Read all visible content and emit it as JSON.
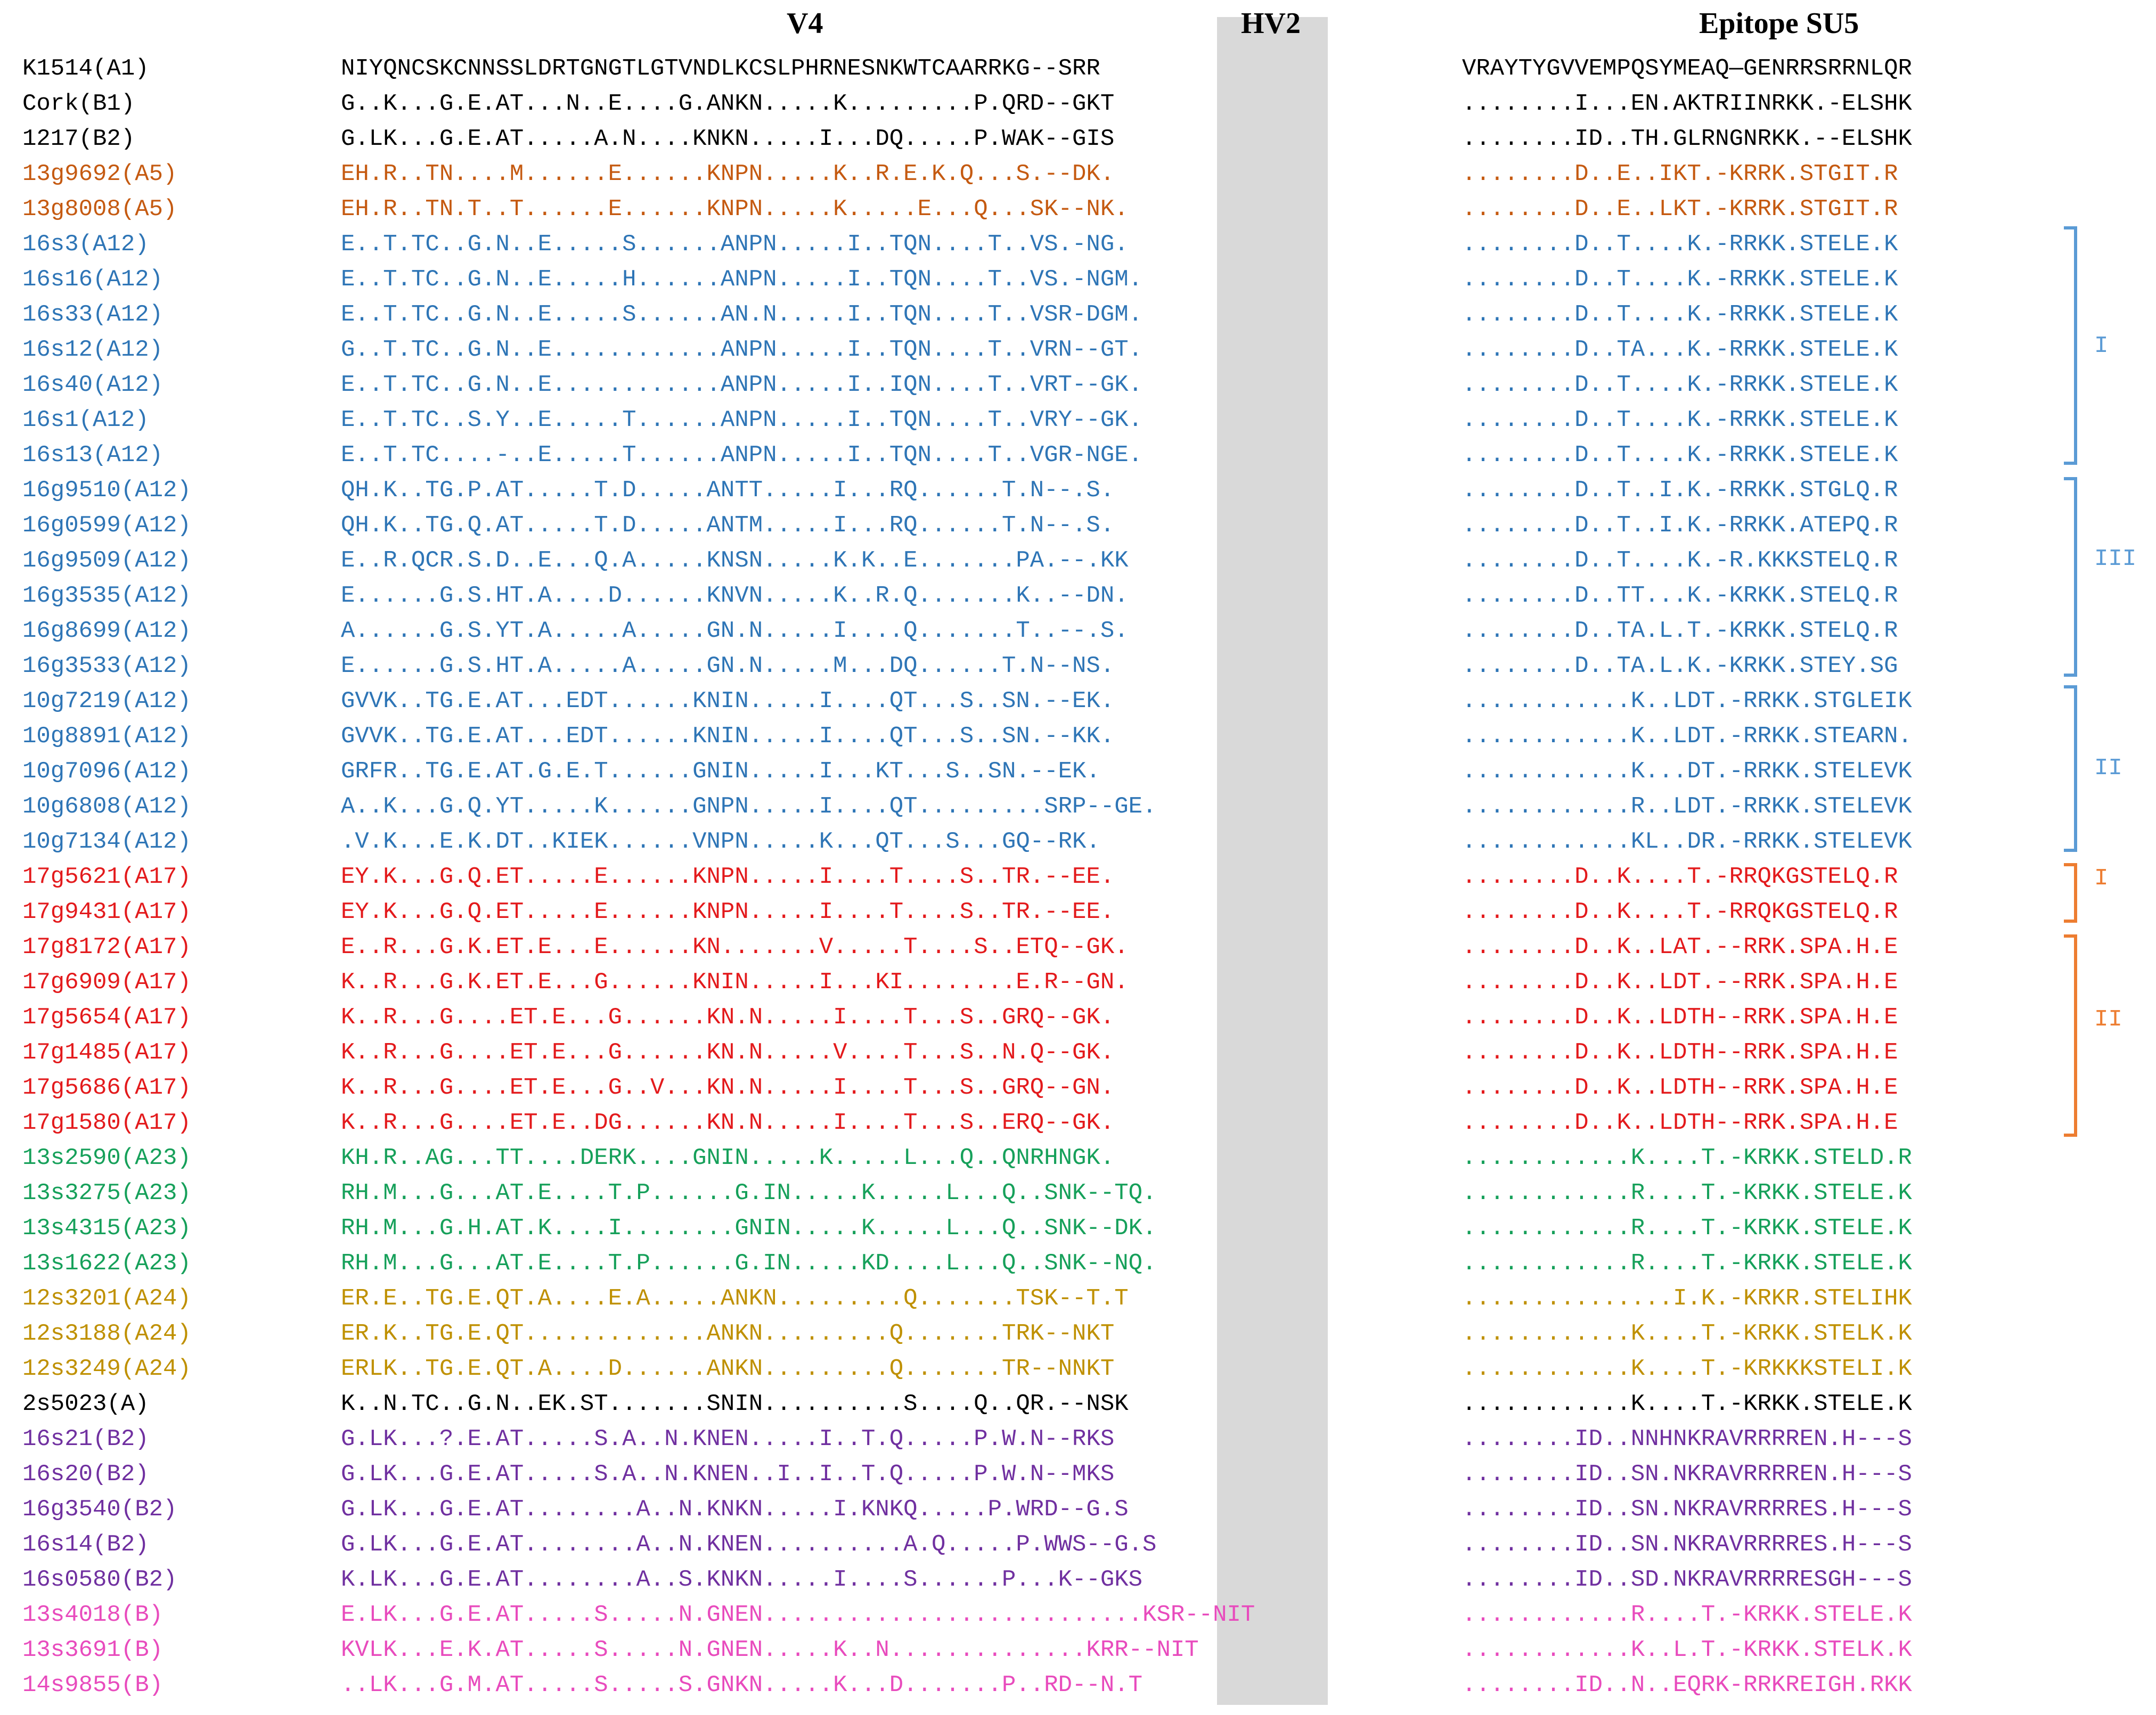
{
  "headers": {
    "v4": "V4",
    "hv2": "HV2",
    "epitope": "Epitope SU5"
  },
  "colors": {
    "black": "#000000",
    "orange": "#c55a11",
    "blue": "#2e75b6",
    "red": "#e31a1c",
    "green": "#16a05a",
    "gold": "#bf9000",
    "purple": "#7030a0",
    "pink": "#e84bbd",
    "bracket_blue": "#5b9bd5",
    "bracket_orange": "#ed7d31"
  },
  "rows": [
    {
      "name": "K1514(A1)",
      "v4": "NIYQNCSKCNNSSLDRTGNGTLGTVNDLKCSLPHRNESNKWTCAARRKG--SRR",
      "epitope": "VRAYTYGVVEMPQSYMEAQ—GENRRSRRNLQR",
      "color": "black"
    },
    {
      "name": "Cork(B1)",
      "v4": "G..K...G.E.AT...N..E....G.ANKN.....K.........P.QRD--GKT",
      "epitope": "........I...EN.AKTRIINRKK.-ELSHK",
      "color": "black"
    },
    {
      "name": "1217(B2)",
      "v4": "G.LK...G.E.AT.....A.N....KNKN.....I...DQ.....P.WAK--GIS",
      "epitope": "........ID..TH.GLRNGNRKK.--ELSHK",
      "color": "black"
    },
    {
      "name": "13g9692(A5)",
      "v4": "EH.R..TN....M......E......KNPN.....K..R.E.K.Q...S.--DK.",
      "epitope": "........D..E..IKT.-KRRK.STGIT.R",
      "color": "orange"
    },
    {
      "name": "13g8008(A5)",
      "v4": "EH.R..TN.T..T......E......KNPN.....K.....E...Q...SK--NK.",
      "epitope": "........D..E..LKT.-KRRK.STGIT.R",
      "color": "orange"
    },
    {
      "name": "16s3(A12)",
      "v4": "E..T.TC..G.N..E.....S......ANPN.....I..TQN....T..VS.-NG.",
      "epitope": "........D..T....K.-RRKK.STELE.K",
      "color": "blue"
    },
    {
      "name": "16s16(A12)",
      "v4": "E..T.TC..G.N..E.....H......ANPN.....I..TQN....T..VS.-NGM.",
      "epitope": "........D..T....K.-RRKK.STELE.K",
      "color": "blue"
    },
    {
      "name": "16s33(A12)",
      "v4": "E..T.TC..G.N..E.....S......AN.N.....I..TQN....T..VSR-DGM.",
      "epitope": "........D..T....K.-RRKK.STELE.K",
      "color": "blue"
    },
    {
      "name": "16s12(A12)",
      "v4": "G..T.TC..G.N..E............ANPN.....I..TQN....T..VRN--GT.",
      "epitope": "........D..TA...K.-RRKK.STELE.K",
      "color": "blue"
    },
    {
      "name": "16s40(A12)",
      "v4": "E..T.TC..G.N..E............ANPN.....I..IQN....T..VRT--GK.",
      "epitope": "........D..T....K.-RRKK.STELE.K",
      "color": "blue"
    },
    {
      "name": "16s1(A12)",
      "v4": "E..T.TC..S.Y..E.....T......ANPN.....I..TQN....T..VRY--GK.",
      "epitope": "........D..T....K.-RRKK.STELE.K",
      "color": "blue"
    },
    {
      "name": "16s13(A12)",
      "v4": "E..T.TC....-..E.....T......ANPN.....I..TQN....T..VGR-NGE.",
      "epitope": "........D..T....K.-RRKK.STELE.K",
      "color": "blue"
    },
    {
      "name": "16g9510(A12)",
      "v4": "QH.K..TG.P.AT.....T.D.....ANTT.....I...RQ......T.N--.S.",
      "epitope": "........D..T..I.K.-RRKK.STGLQ.R",
      "color": "blue"
    },
    {
      "name": "16g0599(A12)",
      "v4": "QH.K..TG.Q.AT.....T.D.....ANTM.....I...RQ......T.N--.S.",
      "epitope": "........D..T..I.K.-RRKK.ATEPQ.R",
      "color": "blue"
    },
    {
      "name": "16g9509(A12)",
      "v4": "E..R.QCR.S.D..E...Q.A.....KNSN.....K.K..E.......PA.--.KK",
      "epitope": "........D..T....K.-R.KKKSTELQ.R",
      "color": "blue"
    },
    {
      "name": "16g3535(A12)",
      "v4": "E......G.S.HT.A....D......KNVN.....K..R.Q.......K..--DN.",
      "epitope": "........D..TT...K.-KRKK.STELQ.R",
      "color": "blue"
    },
    {
      "name": "16g8699(A12)",
      "v4": "A......G.S.YT.A.....A.....GN.N.....I....Q.......T..--.S.",
      "epitope": "........D..TA.L.T.-KRKK.STELQ.R",
      "color": "blue"
    },
    {
      "name": "16g3533(A12)",
      "v4": "E......G.S.HT.A.....A.....GN.N.....M...DQ......T.N--NS.",
      "epitope": "........D..TA.L.K.-KRKK.STEY.SG",
      "color": "blue"
    },
    {
      "name": "10g7219(A12)",
      "v4": "GVVK..TG.E.AT...EDT......KNIN.....I....QT...S..SN.--EK.",
      "epitope": "............K..LDT.-RRKK.STGLEIK",
      "color": "blue"
    },
    {
      "name": "10g8891(A12)",
      "v4": "GVVK..TG.E.AT...EDT......KNIN.....I....QT...S..SN.--KK.",
      "epitope": "............K..LDT.-RRKK.STEARN.",
      "color": "blue"
    },
    {
      "name": "10g7096(A12)",
      "v4": "GRFR..TG.E.AT.G.E.T......GNIN.....I...KT...S..SN.--EK.",
      "epitope": "............K...DT.-RRKK.STELEVK",
      "color": "blue"
    },
    {
      "name": "10g6808(A12)",
      "v4": "A..K...G.Q.YT.....K......GNPN.....I....QT.........SRP--GE.",
      "epitope": "............R..LDT.-RRKK.STELEVK",
      "color": "blue"
    },
    {
      "name": "10g7134(A12)",
      "v4": ".V.K...E.K.DT..KIEK......VNPN.....K...QT...S...GQ--RK.",
      "epitope": "............KL..DR.-RRKK.STELEVK",
      "color": "blue"
    },
    {
      "name": "17g5621(A17)",
      "v4": "EY.K...G.Q.ET.....E......KNPN.....I....T....S..TR.--EE.",
      "epitope": "........D..K....T.-RRQKGSTELQ.R",
      "color": "red"
    },
    {
      "name": "17g9431(A17)",
      "v4": "EY.K...G.Q.ET.....E......KNPN.....I....T....S..TR.--EE.",
      "epitope": "........D..K....T.-RRQKGSTELQ.R",
      "color": "red"
    },
    {
      "name": "17g8172(A17)",
      "v4": "E..R...G.K.ET.E...E......KN.......V.....T....S..ETQ--GK.",
      "epitope": "........D..K..LAT.--RRK.SPA.H.E",
      "color": "red"
    },
    {
      "name": "17g6909(A17)",
      "v4": "K..R...G.K.ET.E...G......KNIN.....I...KI........E.R--GN.",
      "epitope": "........D..K..LDT.--RRK.SPA.H.E",
      "color": "red"
    },
    {
      "name": "17g5654(A17)",
      "v4": "K..R...G....ET.E...G......KN.N.....I....T...S..GRQ--GK.",
      "epitope": "........D..K..LDTH--RRK.SPA.H.E",
      "color": "red"
    },
    {
      "name": "17g1485(A17)",
      "v4": "K..R...G....ET.E...G......KN.N.....V....T...S..N.Q--GK.",
      "epitope": "........D..K..LDTH--RRK.SPA.H.E",
      "color": "red"
    },
    {
      "name": "17g5686(A17)",
      "v4": "K..R...G....ET.E...G..V...KN.N.....I....T...S..GRQ--GN.",
      "epitope": "........D..K..LDTH--RRK.SPA.H.E",
      "color": "red"
    },
    {
      "name": "17g1580(A17)",
      "v4": "K..R...G....ET.E..DG......KN.N.....I....T...S..ERQ--GK.",
      "epitope": "........D..K..LDTH--RRK.SPA.H.E",
      "color": "red"
    },
    {
      "name": "13s2590(A23)",
      "v4": "KH.R..AG...TT....DERK....GNIN.....K.....L...Q..QNRHNGK.",
      "epitope": "............K....T.-KRKK.STELD.R",
      "color": "green"
    },
    {
      "name": "13s3275(A23)",
      "v4": "RH.M...G...AT.E....T.P......G.IN.....K.....L...Q..SNK--TQ.",
      "epitope": "............R....T.-KRKK.STELE.K",
      "color": "green"
    },
    {
      "name": "13s4315(A23)",
      "v4": "RH.M...G.H.AT.K....I........GNIN.....K.....L...Q..SNK--DK.",
      "epitope": "............R....T.-KRKK.STELE.K",
      "color": "green"
    },
    {
      "name": "13s1622(A23)",
      "v4": "RH.M...G...AT.E....T.P......G.IN.....KD....L...Q..SNK--NQ.",
      "epitope": "............R....T.-KRKK.STELE.K",
      "color": "green"
    },
    {
      "name": "12s3201(A24)",
      "v4": "ER.E..TG.E.QT.A....E.A.....ANKN.........Q.......TSK--T.T",
      "epitope": "...............I.K.-KRKR.STELIHK",
      "color": "gold"
    },
    {
      "name": "12s3188(A24)",
      "v4": "ER.K..TG.E.QT.............ANKN.........Q.......TRK--NKT",
      "epitope": "............K....T.-KRKK.STELK.K",
      "color": "gold"
    },
    {
      "name": "12s3249(A24)",
      "v4": "ERLK..TG.E.QT.A....D......ANKN.........Q.......TR--NNKT",
      "epitope": "............K....T.-KRKKKSTELI.K",
      "color": "gold"
    },
    {
      "name": "2s5023(A)",
      "v4": "K..N.TC..G.N..EK.ST.......SNIN..........S....Q..QR.--NSK",
      "epitope": "............K....T.-KRKK.STELE.K",
      "color": "black"
    },
    {
      "name": "16s21(B2)",
      "v4": "G.LK...?.E.AT.....S.A..N.KNEN.....I..T.Q.....P.W.N--RKS",
      "epitope": "........ID..NNHNKRAVRRRREN.H---S",
      "color": "purple"
    },
    {
      "name": "16s20(B2)",
      "v4": "G.LK...G.E.AT.....S.A..N.KNEN..I..I..T.Q.....P.W.N--MKS",
      "epitope": "........ID..SN.NKRAVRRRREN.H---S",
      "color": "purple"
    },
    {
      "name": "16g3540(B2)",
      "v4": "G.LK...G.E.AT........A..N.KNKN.....I.KNKQ.....P.WRD--G.S",
      "epitope": "........ID..SN.NKRAVRRRRES.H---S",
      "color": "purple"
    },
    {
      "name": "16s14(B2)",
      "v4": "G.LK...G.E.AT........A..N.KNEN..........A.Q.....P.WWS--G.S",
      "epitope": "........ID..SN.NKRAVRRRRES.H---S",
      "color": "purple"
    },
    {
      "name": "16s0580(B2)",
      "v4": "K.LK...G.E.AT........A..S.KNKN.....I....S......P...K--GKS",
      "epitope": "........ID..SD.NKRAVRRRRESGH---S",
      "color": "purple"
    },
    {
      "name": "13s4018(B)",
      "v4": "E.LK...G.E.AT.....S.....N.GNEN...........................KSR--NIT",
      "epitope": "............R....T.-KRKK.STELE.K",
      "color": "pink"
    },
    {
      "name": "13s3691(B)",
      "v4": "KVLK...E.K.AT.....S.....N.GNEN.....K..N..............KRR--NIT",
      "epitope": "............K..L.T.-KRKK.STELK.K",
      "color": "pink"
    },
    {
      "name": "14s9855(B)",
      "v4": "..LK...G.M.AT.....S.....S.GNKN.....K...D.......P..RD--N.T",
      "epitope": "........ID..N..EQRK-RRKREIGH.RKK",
      "color": "pink"
    }
  ],
  "clade_labels": [
    {
      "text": "I",
      "color": "bracket_blue"
    },
    {
      "text": "III",
      "color": "bracket_blue"
    },
    {
      "text": "II",
      "color": "bracket_blue"
    },
    {
      "text": "I",
      "color": "bracket_orange"
    },
    {
      "text": "II",
      "color": "bracket_orange"
    }
  ]
}
